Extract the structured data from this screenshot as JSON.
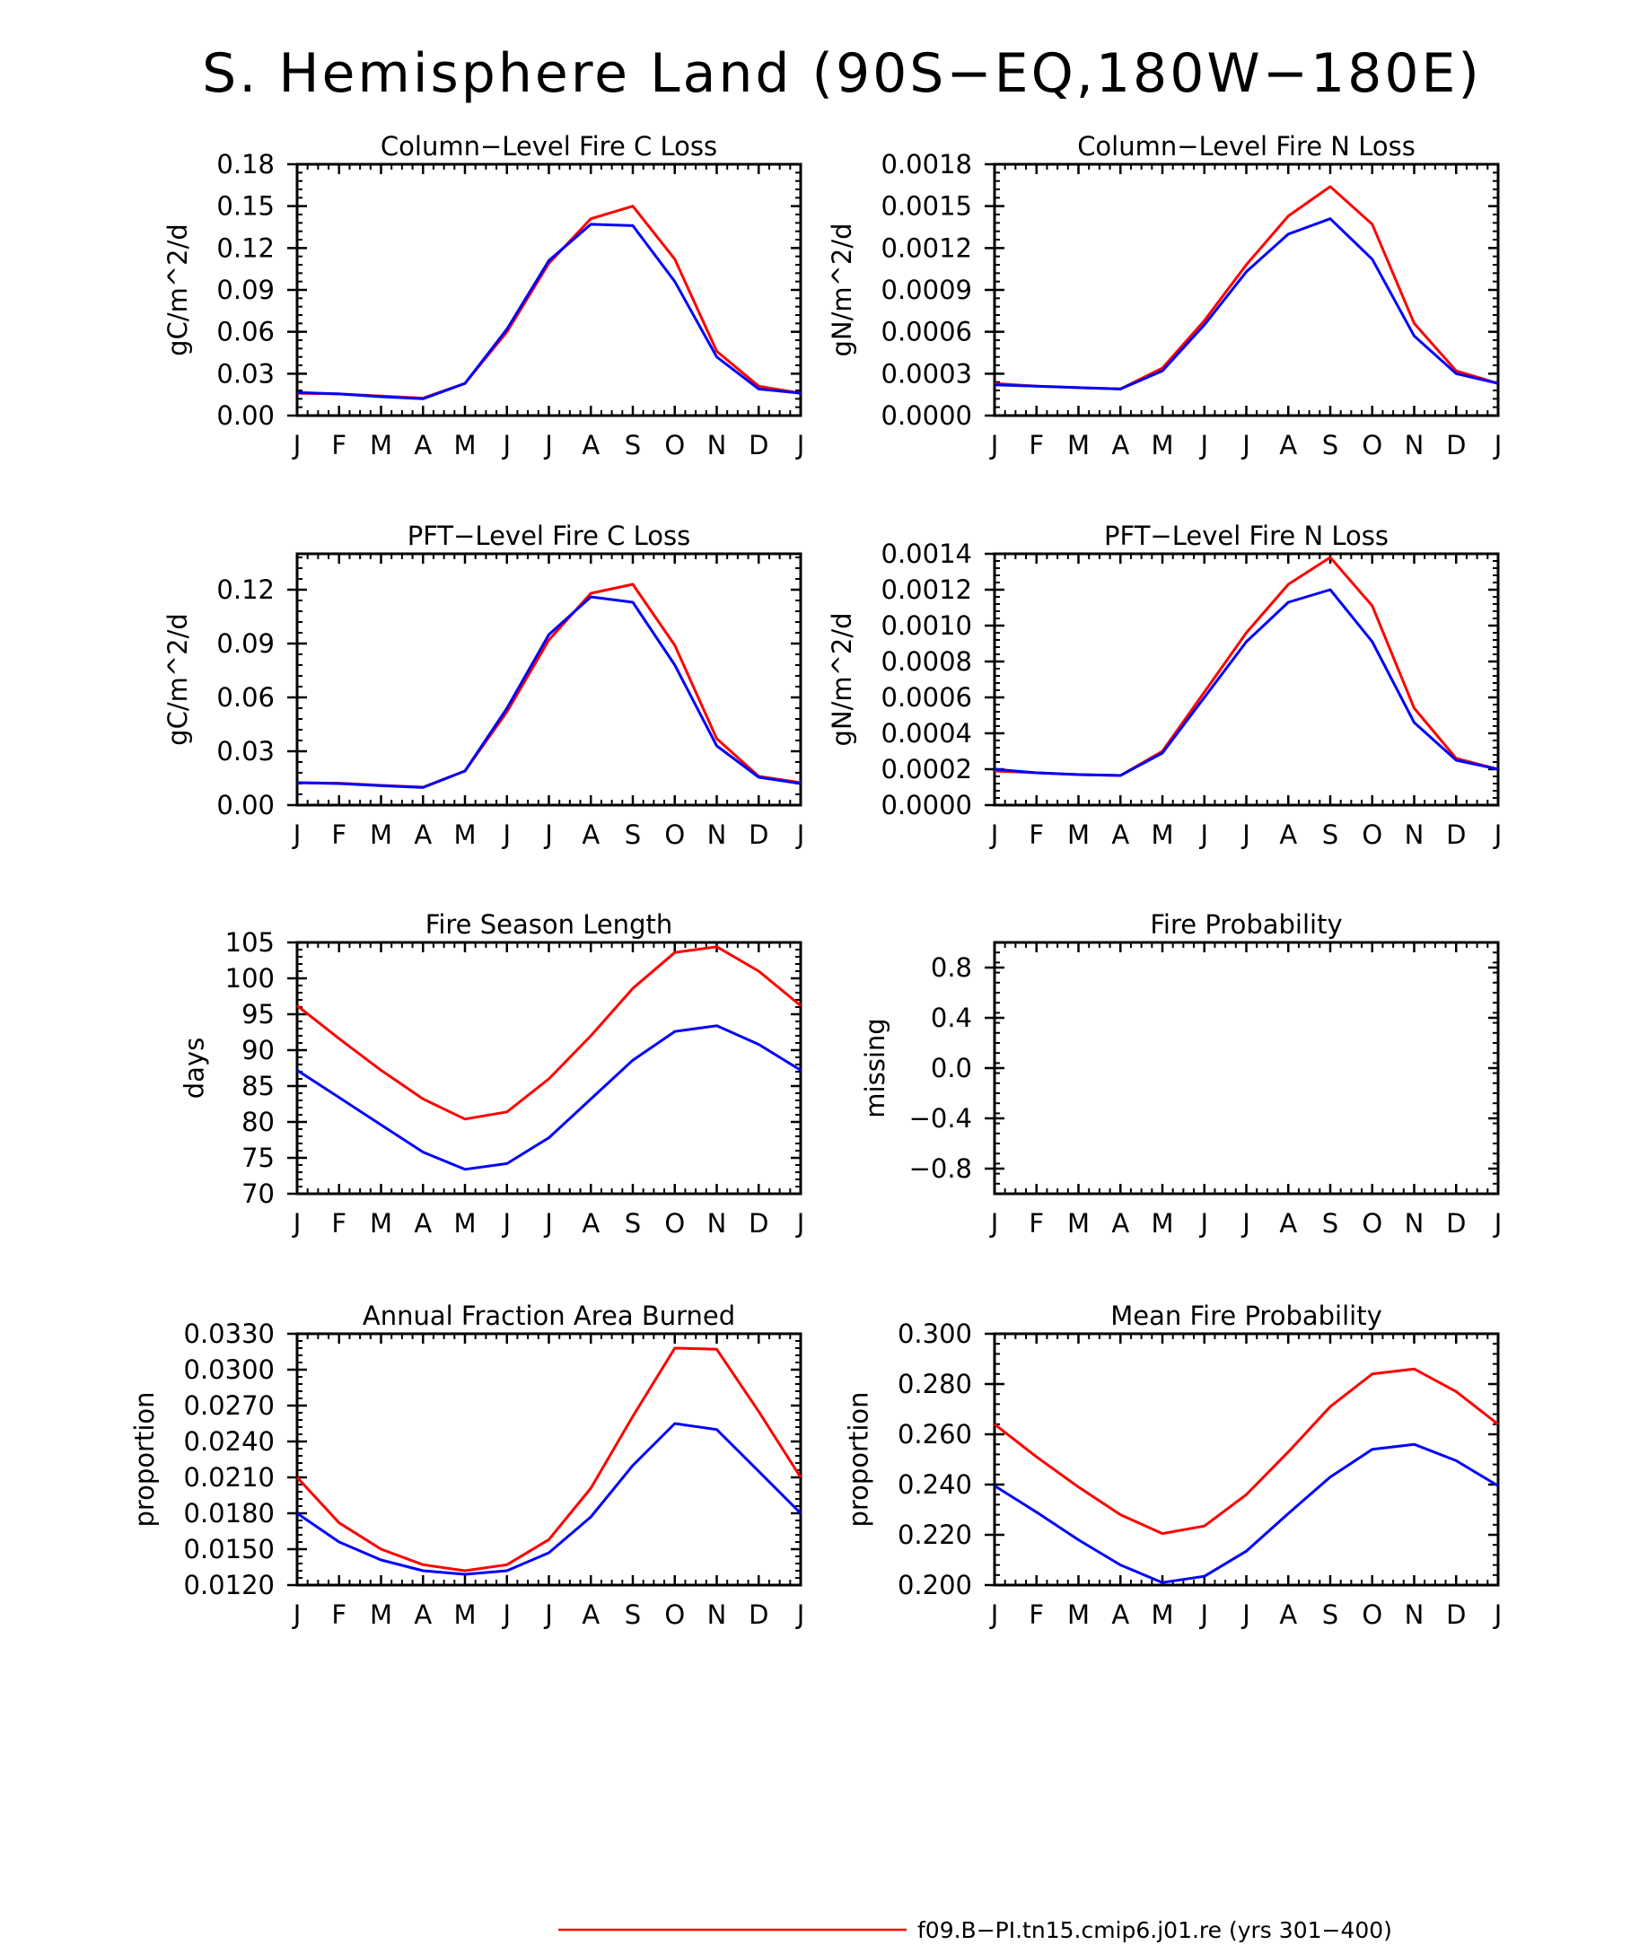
{
  "figure": {
    "title": "S. Hemisphere Land (90S−EQ,180W−180E)"
  },
  "legend": {
    "items": [
      {
        "label": "f09.B−PI.tn15.cmip6.j01.re (yrs 301−400)",
        "color": "#ff0000"
      }
    ]
  },
  "chart_data": [
    {
      "type": "line",
      "title": "Column−Level Fire C Loss",
      "ylabel": "gC/m^2/d",
      "categories": [
        "J",
        "F",
        "M",
        "A",
        "M",
        "J",
        "J",
        "A",
        "S",
        "O",
        "N",
        "D",
        "J"
      ],
      "ylim": [
        0,
        0.18
      ],
      "yticks": [
        "0.00",
        "0.03",
        "0.06",
        "0.09",
        "0.12",
        "0.15",
        "0.18"
      ],
      "series": [
        {
          "color": "#ff0000",
          "values": [
            0.016,
            0.0155,
            0.014,
            0.0125,
            0.023,
            0.06,
            0.109,
            0.141,
            0.15,
            0.112,
            0.046,
            0.021,
            0.016
          ]
        },
        {
          "color": "#0000ff",
          "values": [
            0.0165,
            0.0155,
            0.0135,
            0.012,
            0.023,
            0.062,
            0.111,
            0.137,
            0.136,
            0.096,
            0.042,
            0.019,
            0.016
          ]
        }
      ]
    },
    {
      "type": "line",
      "title": "Column−Level Fire N Loss",
      "ylabel": "gN/m^2/d",
      "categories": [
        "J",
        "F",
        "M",
        "A",
        "M",
        "J",
        "J",
        "A",
        "S",
        "O",
        "N",
        "D",
        "J"
      ],
      "ylim": [
        0,
        0.0018
      ],
      "yticks": [
        "0.0000",
        "0.0003",
        "0.0006",
        "0.0009",
        "0.0012",
        "0.0015",
        "0.0018"
      ],
      "series": [
        {
          "color": "#ff0000",
          "values": [
            0.00023,
            0.00021,
            0.0002,
            0.00019,
            0.00034,
            0.00068,
            0.00108,
            0.00143,
            0.00164,
            0.00137,
            0.00066,
            0.00032,
            0.00023
          ]
        },
        {
          "color": "#0000ff",
          "values": [
            0.00022,
            0.00021,
            0.0002,
            0.00019,
            0.00032,
            0.00065,
            0.00103,
            0.0013,
            0.00141,
            0.00112,
            0.00057,
            0.0003,
            0.00023
          ]
        }
      ]
    },
    {
      "type": "line",
      "title": "PFT−Level Fire C Loss",
      "ylabel": "gC/m^2/d",
      "categories": [
        "J",
        "F",
        "M",
        "A",
        "M",
        "J",
        "J",
        "A",
        "S",
        "O",
        "N",
        "D",
        "J"
      ],
      "ylim": [
        0,
        0.14
      ],
      "yticks": [
        "0.00",
        "0.03",
        "0.06",
        "0.09",
        "0.12"
      ],
      "series": [
        {
          "color": "#ff0000",
          "values": [
            0.0125,
            0.0122,
            0.011,
            0.01,
            0.019,
            0.052,
            0.092,
            0.118,
            0.123,
            0.089,
            0.037,
            0.016,
            0.0125
          ]
        },
        {
          "color": "#0000ff",
          "values": [
            0.0125,
            0.012,
            0.0108,
            0.0098,
            0.019,
            0.054,
            0.095,
            0.116,
            0.113,
            0.078,
            0.033,
            0.0155,
            0.012
          ]
        }
      ]
    },
    {
      "type": "line",
      "title": "PFT−Level Fire N Loss",
      "ylabel": "gN/m^2/d",
      "categories": [
        "J",
        "F",
        "M",
        "A",
        "M",
        "J",
        "J",
        "A",
        "S",
        "O",
        "N",
        "D",
        "J"
      ],
      "ylim": [
        0,
        0.0014
      ],
      "yticks": [
        "0.0000",
        "0.0002",
        "0.0004",
        "0.0006",
        "0.0008",
        "0.0010",
        "0.0012",
        "0.0014"
      ],
      "series": [
        {
          "color": "#ff0000",
          "values": [
            0.00019,
            0.00018,
            0.00017,
            0.000165,
            0.0003,
            0.00063,
            0.00096,
            0.00123,
            0.00138,
            0.00111,
            0.00054,
            0.00026,
            0.0002
          ]
        },
        {
          "color": "#0000ff",
          "values": [
            0.0002,
            0.00018,
            0.00017,
            0.000165,
            0.00029,
            0.0006,
            0.00091,
            0.00113,
            0.0012,
            0.00091,
            0.00046,
            0.00025,
            0.0002
          ]
        }
      ]
    },
    {
      "type": "line",
      "title": "Fire Season Length",
      "ylabel": "days",
      "categories": [
        "J",
        "F",
        "M",
        "A",
        "M",
        "J",
        "J",
        "A",
        "S",
        "O",
        "N",
        "D",
        "J"
      ],
      "ylim": [
        70,
        105
      ],
      "yticks": [
        "70",
        "75",
        "80",
        "85",
        "90",
        "95",
        "100",
        "105"
      ],
      "series": [
        {
          "color": "#ff0000",
          "values": [
            96.2,
            91.6,
            87.2,
            83.2,
            80.4,
            81.4,
            86,
            92,
            98.6,
            103.6,
            104.4,
            101,
            96.2
          ]
        },
        {
          "color": "#0000ff",
          "values": [
            87.2,
            83.4,
            79.6,
            75.8,
            73.4,
            74.2,
            77.8,
            83.2,
            88.6,
            92.6,
            93.4,
            90.8,
            87.2
          ]
        }
      ]
    },
    {
      "type": "line",
      "title": "Fire Probability",
      "ylabel": "missing",
      "categories": [
        "J",
        "F",
        "M",
        "A",
        "M",
        "J",
        "J",
        "A",
        "S",
        "O",
        "N",
        "D",
        "J"
      ],
      "ylim": [
        -1,
        1
      ],
      "yticks": [
        "−0.8",
        "−0.4",
        "0.0",
        "0.4",
        "0.8"
      ],
      "series": []
    },
    {
      "type": "line",
      "title": "Annual Fraction Area Burned",
      "ylabel": "proportion",
      "categories": [
        "J",
        "F",
        "M",
        "A",
        "M",
        "J",
        "J",
        "A",
        "S",
        "O",
        "N",
        "D",
        "J"
      ],
      "ylim": [
        0.012,
        0.033
      ],
      "yticks": [
        "0.0120",
        "0.0150",
        "0.0180",
        "0.0210",
        "0.0240",
        "0.0270",
        "0.0300",
        "0.0330"
      ],
      "series": [
        {
          "color": "#ff0000",
          "values": [
            0.021,
            0.0172,
            0.015,
            0.0137,
            0.0132,
            0.0137,
            0.0158,
            0.0201,
            0.0261,
            0.0318,
            0.0317,
            0.0265,
            0.021
          ]
        },
        {
          "color": "#0000ff",
          "values": [
            0.018,
            0.0156,
            0.0141,
            0.0132,
            0.0129,
            0.0132,
            0.0147,
            0.0177,
            0.022,
            0.0255,
            0.025,
            0.0215,
            0.018
          ]
        }
      ]
    },
    {
      "type": "line",
      "title": "Mean Fire Probability",
      "ylabel": "proportion",
      "categories": [
        "J",
        "F",
        "M",
        "A",
        "M",
        "J",
        "J",
        "A",
        "S",
        "O",
        "N",
        "D",
        "J"
      ],
      "ylim": [
        0.2,
        0.3
      ],
      "yticks": [
        "0.200",
        "0.220",
        "0.240",
        "0.260",
        "0.280",
        "0.300"
      ],
      "series": [
        {
          "color": "#ff0000",
          "values": [
            0.264,
            0.251,
            0.239,
            0.228,
            0.2205,
            0.2235,
            0.236,
            0.253,
            0.271,
            0.284,
            0.286,
            0.277,
            0.264
          ]
        },
        {
          "color": "#0000ff",
          "values": [
            0.2395,
            0.229,
            0.218,
            0.208,
            0.201,
            0.2035,
            0.2135,
            0.2285,
            0.243,
            0.254,
            0.256,
            0.2495,
            0.2395
          ]
        }
      ]
    }
  ]
}
